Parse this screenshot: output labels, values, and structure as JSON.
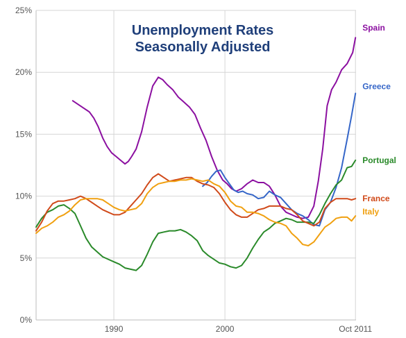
{
  "chart_data": {
    "type": "line",
    "title": [
      "Unemployment Rates",
      "Seasonally Adjusted"
    ],
    "xlabel": "",
    "ylabel": "",
    "xlim": [
      1983.0,
      2011.8
    ],
    "ylim": [
      0,
      25
    ],
    "x_ticks": [
      {
        "value": 1990,
        "label": "1990"
      },
      {
        "value": 2000,
        "label": "2000"
      },
      {
        "value": 2011.75,
        "label": "Oct 2011"
      }
    ],
    "y_ticks": [
      {
        "value": 0,
        "label": "0%"
      },
      {
        "value": 5,
        "label": "5%"
      },
      {
        "value": 10,
        "label": "10%"
      },
      {
        "value": 15,
        "label": "15%"
      },
      {
        "value": 20,
        "label": "20%"
      },
      {
        "value": 25,
        "label": "25%"
      }
    ],
    "grid": true,
    "series": [
      {
        "name": "Spain",
        "color": "#8b0fa0",
        "x": [
          1986.3,
          1986.8,
          1987.3,
          1987.8,
          1988.2,
          1988.6,
          1989.0,
          1989.4,
          1989.8,
          1990.2,
          1990.6,
          1991.0,
          1991.3,
          1991.6,
          1992.0,
          1992.5,
          1993.0,
          1993.5,
          1994.0,
          1994.4,
          1994.8,
          1995.3,
          1995.8,
          1996.3,
          1996.8,
          1997.3,
          1997.8,
          1998.3,
          1998.8,
          1999.3,
          1999.8,
          2000.2,
          2000.6,
          2001.0,
          2001.5,
          2002.0,
          2002.5,
          2003.0,
          2003.5,
          2004.0,
          2004.5,
          2005.0,
          2005.5,
          2006.0,
          2006.5,
          2007.0,
          2007.5,
          2008.0,
          2008.4,
          2008.8,
          2009.2,
          2009.6,
          2010.0,
          2010.5,
          2011.0,
          2011.5,
          2011.75
        ],
        "values": [
          17.7,
          17.4,
          17.1,
          16.8,
          16.3,
          15.6,
          14.7,
          14.0,
          13.5,
          13.2,
          12.9,
          12.6,
          12.8,
          13.2,
          13.8,
          15.2,
          17.2,
          18.9,
          19.6,
          19.4,
          19.0,
          18.6,
          18.0,
          17.6,
          17.2,
          16.6,
          15.5,
          14.5,
          13.2,
          12.1,
          11.3,
          11.0,
          10.6,
          10.4,
          10.6,
          11.0,
          11.3,
          11.1,
          11.1,
          10.8,
          10.1,
          9.2,
          8.7,
          8.5,
          8.3,
          8.2,
          8.3,
          9.2,
          11.2,
          13.8,
          17.3,
          18.6,
          19.2,
          20.2,
          20.7,
          21.6,
          22.8
        ]
      },
      {
        "name": "Greece",
        "color": "#3566c8",
        "x": [
          1998.0,
          1998.4,
          1998.8,
          1999.2,
          1999.6,
          2000.0,
          2000.4,
          2000.8,
          2001.2,
          2001.6,
          2002.0,
          2002.5,
          2003.0,
          2003.5,
          2004.0,
          2004.5,
          2005.0,
          2005.5,
          2006.0,
          2006.5,
          2007.0,
          2007.5,
          2008.0,
          2008.5,
          2009.0,
          2009.5,
          2010.0,
          2010.5,
          2011.0,
          2011.4,
          2011.75
        ],
        "values": [
          10.8,
          11.1,
          11.6,
          12.0,
          12.1,
          11.5,
          11.0,
          10.5,
          10.3,
          10.4,
          10.2,
          10.1,
          9.8,
          9.9,
          10.4,
          10.1,
          9.9,
          9.4,
          8.9,
          8.6,
          8.4,
          8.1,
          7.7,
          7.6,
          8.9,
          9.5,
          10.7,
          12.3,
          14.6,
          16.5,
          18.3
        ]
      },
      {
        "name": "Portugal",
        "color": "#2a8a2a",
        "x": [
          1983.0,
          1983.5,
          1984.0,
          1984.5,
          1985.0,
          1985.5,
          1986.0,
          1986.5,
          1987.0,
          1987.5,
          1988.0,
          1988.5,
          1989.0,
          1989.5,
          1990.0,
          1990.5,
          1991.0,
          1991.5,
          1992.0,
          1992.5,
          1993.0,
          1993.5,
          1994.0,
          1994.5,
          1995.0,
          1995.5,
          1996.0,
          1996.5,
          1997.0,
          1997.5,
          1998.0,
          1998.5,
          1999.0,
          1999.5,
          2000.0,
          2000.5,
          2001.0,
          2001.5,
          2002.0,
          2002.5,
          2003.0,
          2003.5,
          2004.0,
          2004.5,
          2005.0,
          2005.5,
          2006.0,
          2006.5,
          2007.0,
          2007.5,
          2008.0,
          2008.5,
          2009.0,
          2009.5,
          2010.0,
          2010.5,
          2011.0,
          2011.4,
          2011.75
        ],
        "values": [
          7.5,
          8.2,
          8.7,
          8.9,
          9.2,
          9.3,
          9.0,
          8.6,
          7.6,
          6.6,
          5.9,
          5.5,
          5.1,
          4.9,
          4.7,
          4.5,
          4.2,
          4.1,
          4.0,
          4.4,
          5.3,
          6.3,
          7.0,
          7.1,
          7.2,
          7.2,
          7.3,
          7.1,
          6.8,
          6.4,
          5.6,
          5.2,
          4.9,
          4.6,
          4.5,
          4.3,
          4.2,
          4.4,
          5.0,
          5.8,
          6.5,
          7.1,
          7.4,
          7.8,
          8.0,
          8.2,
          8.1,
          7.9,
          7.9,
          7.9,
          7.8,
          8.5,
          9.4,
          10.2,
          10.9,
          11.3,
          12.3,
          12.4,
          12.9
        ]
      },
      {
        "name": "France",
        "color": "#d04a1a",
        "x": [
          1983.0,
          1983.5,
          1984.0,
          1984.5,
          1985.0,
          1985.5,
          1986.0,
          1986.5,
          1987.0,
          1987.5,
          1988.0,
          1988.5,
          1989.0,
          1989.5,
          1990.0,
          1990.5,
          1991.0,
          1991.5,
          1992.0,
          1992.5,
          1993.0,
          1993.5,
          1994.0,
          1994.5,
          1995.0,
          1995.5,
          1996.0,
          1996.5,
          1997.0,
          1997.5,
          1998.0,
          1998.5,
          1999.0,
          1999.5,
          2000.0,
          2000.5,
          2001.0,
          2001.5,
          2002.0,
          2002.5,
          2003.0,
          2003.5,
          2004.0,
          2004.5,
          2005.0,
          2005.5,
          2006.0,
          2006.5,
          2007.0,
          2007.5,
          2008.0,
          2008.5,
          2009.0,
          2009.5,
          2010.0,
          2010.5,
          2011.0,
          2011.4,
          2011.75
        ],
        "values": [
          7.2,
          7.9,
          8.8,
          9.4,
          9.6,
          9.6,
          9.7,
          9.8,
          10.0,
          9.8,
          9.5,
          9.2,
          8.9,
          8.7,
          8.5,
          8.5,
          8.7,
          9.2,
          9.7,
          10.2,
          10.9,
          11.5,
          11.8,
          11.5,
          11.2,
          11.3,
          11.4,
          11.5,
          11.5,
          11.2,
          11.0,
          10.9,
          10.7,
          10.2,
          9.5,
          8.9,
          8.5,
          8.3,
          8.3,
          8.6,
          8.9,
          9.0,
          9.2,
          9.2,
          9.2,
          9.0,
          8.9,
          8.5,
          8.0,
          7.8,
          7.6,
          7.9,
          9.0,
          9.5,
          9.8,
          9.8,
          9.8,
          9.7,
          9.8
        ]
      },
      {
        "name": "Italy",
        "color": "#f0a010",
        "x": [
          1983.0,
          1983.5,
          1984.0,
          1984.5,
          1985.0,
          1985.5,
          1986.0,
          1986.5,
          1987.0,
          1987.5,
          1988.0,
          1988.5,
          1989.0,
          1989.5,
          1990.0,
          1990.5,
          1991.0,
          1991.5,
          1992.0,
          1992.5,
          1993.0,
          1993.5,
          1994.0,
          1994.5,
          1995.0,
          1995.5,
          1996.0,
          1996.5,
          1997.0,
          1997.5,
          1998.0,
          1998.5,
          1999.0,
          1999.5,
          2000.0,
          2000.5,
          2001.0,
          2001.5,
          2002.0,
          2002.5,
          2003.0,
          2003.5,
          2004.0,
          2004.5,
          2005.0,
          2005.5,
          2006.0,
          2006.5,
          2007.0,
          2007.5,
          2008.0,
          2008.5,
          2009.0,
          2009.5,
          2010.0,
          2010.5,
          2011.0,
          2011.4,
          2011.75
        ],
        "values": [
          7.0,
          7.4,
          7.6,
          7.9,
          8.3,
          8.5,
          8.8,
          9.3,
          9.7,
          9.8,
          9.8,
          9.8,
          9.7,
          9.4,
          9.1,
          8.9,
          8.8,
          8.9,
          9.0,
          9.4,
          10.2,
          10.7,
          11.0,
          11.1,
          11.2,
          11.2,
          11.3,
          11.3,
          11.4,
          11.3,
          11.2,
          11.3,
          11.0,
          10.8,
          10.3,
          9.6,
          9.2,
          9.1,
          8.7,
          8.7,
          8.6,
          8.4,
          8.1,
          7.9,
          7.8,
          7.6,
          7.0,
          6.6,
          6.1,
          6.0,
          6.3,
          6.9,
          7.5,
          7.8,
          8.2,
          8.3,
          8.3,
          8.0,
          8.4
        ]
      }
    ]
  }
}
